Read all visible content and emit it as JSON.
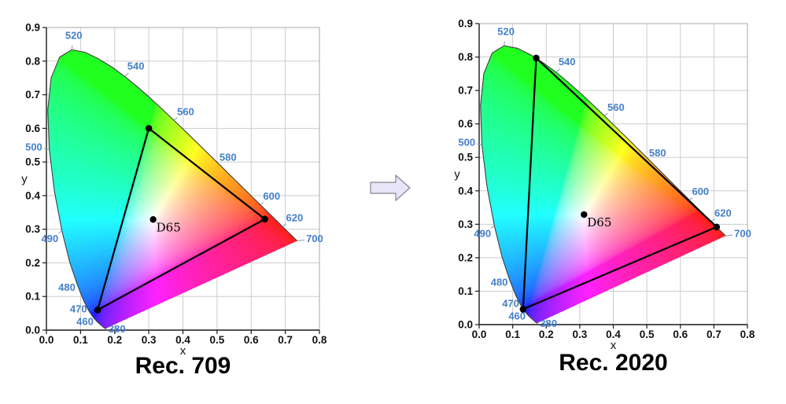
{
  "figure": {
    "description": "CIE 1931 xy chromaticity diagrams comparing the Rec. 709 and Rec. 2020 color gamut triangles",
    "background": "#ffffff"
  },
  "arrow": {
    "shape": "rightwards-block-arrow",
    "fill": "#e9e5f8",
    "stroke": "#85858d"
  },
  "style": {
    "wavelength_label_color": "#4580c8",
    "leader_line_color": "#7f99b8",
    "grid_color": "#cdcdcd",
    "frame_color": "#a8a8a8",
    "axis_color": "#1a1a1a",
    "triangle_color": "#000000",
    "locus_outline_color": "#3f3f3f",
    "title_color": "#000000"
  },
  "spectral_locus_xy": [
    [
      380,
      0.1741,
      0.005
    ],
    [
      385,
      0.174,
      0.005
    ],
    [
      390,
      0.1738,
      0.0049
    ],
    [
      395,
      0.1736,
      0.0049
    ],
    [
      400,
      0.1733,
      0.0048
    ],
    [
      405,
      0.173,
      0.0048
    ],
    [
      410,
      0.1726,
      0.0048
    ],
    [
      415,
      0.1721,
      0.0048
    ],
    [
      420,
      0.1714,
      0.0051
    ],
    [
      425,
      0.1703,
      0.0058
    ],
    [
      430,
      0.1689,
      0.0069
    ],
    [
      435,
      0.1669,
      0.0086
    ],
    [
      440,
      0.1644,
      0.0109
    ],
    [
      445,
      0.1611,
      0.0138
    ],
    [
      450,
      0.1566,
      0.0177
    ],
    [
      455,
      0.151,
      0.0227
    ],
    [
      460,
      0.144,
      0.0297
    ],
    [
      465,
      0.1355,
      0.0399
    ],
    [
      470,
      0.1241,
      0.0578
    ],
    [
      475,
      0.1096,
      0.0868
    ],
    [
      480,
      0.0913,
      0.1327
    ],
    [
      485,
      0.0687,
      0.2007
    ],
    [
      490,
      0.0454,
      0.295
    ],
    [
      495,
      0.0235,
      0.4127
    ],
    [
      500,
      0.0082,
      0.5384
    ],
    [
      505,
      0.0039,
      0.6548
    ],
    [
      510,
      0.0139,
      0.7502
    ],
    [
      515,
      0.0389,
      0.812
    ],
    [
      520,
      0.0743,
      0.8338
    ],
    [
      525,
      0.1142,
      0.8262
    ],
    [
      530,
      0.1547,
      0.8059
    ],
    [
      535,
      0.1929,
      0.7816
    ],
    [
      540,
      0.2296,
      0.7543
    ],
    [
      545,
      0.2658,
      0.7243
    ],
    [
      550,
      0.3016,
      0.6923
    ],
    [
      555,
      0.3373,
      0.6589
    ],
    [
      560,
      0.3731,
      0.6245
    ],
    [
      565,
      0.4087,
      0.5896
    ],
    [
      570,
      0.4441,
      0.5547
    ],
    [
      575,
      0.4788,
      0.5202
    ],
    [
      580,
      0.5125,
      0.4866
    ],
    [
      585,
      0.5448,
      0.4544
    ],
    [
      590,
      0.5752,
      0.4242
    ],
    [
      595,
      0.6029,
      0.3965
    ],
    [
      600,
      0.627,
      0.3725
    ],
    [
      605,
      0.6482,
      0.3514
    ],
    [
      610,
      0.6658,
      0.334
    ],
    [
      615,
      0.6801,
      0.3197
    ],
    [
      620,
      0.6915,
      0.3083
    ],
    [
      625,
      0.7006,
      0.2993
    ],
    [
      630,
      0.7079,
      0.292
    ],
    [
      635,
      0.714,
      0.2859
    ],
    [
      640,
      0.719,
      0.2809
    ],
    [
      645,
      0.723,
      0.277
    ],
    [
      650,
      0.726,
      0.274
    ],
    [
      655,
      0.7283,
      0.2717
    ],
    [
      660,
      0.73,
      0.27
    ],
    [
      665,
      0.7311,
      0.2689
    ],
    [
      670,
      0.732,
      0.268
    ],
    [
      675,
      0.7327,
      0.2673
    ],
    [
      680,
      0.7334,
      0.2666
    ],
    [
      685,
      0.734,
      0.266
    ],
    [
      690,
      0.7344,
      0.2656
    ],
    [
      695,
      0.7346,
      0.2654
    ],
    [
      700,
      0.7347,
      0.2653
    ]
  ],
  "wavelength_markers": [
    {
      "wl": "520",
      "locus": [
        0.0743,
        0.8338
      ],
      "label": [
        0.08,
        0.877
      ]
    },
    {
      "wl": "540",
      "locus": [
        0.2296,
        0.7543
      ],
      "label": [
        0.262,
        0.786
      ]
    },
    {
      "wl": "560",
      "locus": [
        0.3731,
        0.6245
      ],
      "label": [
        0.408,
        0.65
      ]
    },
    {
      "wl": "580",
      "locus": [
        0.5125,
        0.4866
      ],
      "label": [
        0.532,
        0.514
      ]
    },
    {
      "wl": "600",
      "locus": [
        0.627,
        0.3725
      ],
      "label": [
        0.66,
        0.398
      ]
    },
    {
      "wl": "620",
      "locus": [
        0.6915,
        0.3083
      ],
      "label": [
        0.727,
        0.334
      ]
    },
    {
      "wl": "700",
      "locus": [
        0.7347,
        0.2653
      ],
      "label": [
        0.786,
        0.272
      ]
    },
    {
      "wl": "500",
      "locus": [
        0.0082,
        0.5384
      ],
      "label": [
        -0.037,
        0.545
      ]
    },
    {
      "wl": "490",
      "locus": [
        0.0454,
        0.295
      ],
      "label": [
        0.01,
        0.272
      ]
    },
    {
      "wl": "480",
      "locus": [
        0.0913,
        0.1327
      ],
      "label": [
        0.06,
        0.127
      ]
    },
    {
      "wl": "470",
      "locus": [
        0.1241,
        0.0578
      ],
      "label": [
        0.094,
        0.063
      ]
    },
    {
      "wl": "460",
      "locus": [
        0.144,
        0.0297
      ],
      "label": [
        0.113,
        0.026
      ]
    },
    {
      "wl": "380",
      "locus": [
        0.1741,
        0.005
      ],
      "label": [
        0.207,
        0.004
      ]
    }
  ],
  "chart_data": [
    {
      "type": "area",
      "subtype": "cie-1931-xy-chromaticity-diagram",
      "title": "Rec. 709",
      "xlabel": "x",
      "ylabel": "y",
      "xlim": [
        0.0,
        0.8
      ],
      "ylim": [
        0.0,
        0.9
      ],
      "grid": true,
      "xticks": [
        "0.0",
        "0.1",
        "0.2",
        "0.3",
        "0.4",
        "0.5",
        "0.6",
        "0.7",
        "0.8"
      ],
      "yticks": [
        "0.0",
        "0.1",
        "0.2",
        "0.3",
        "0.4",
        "0.5",
        "0.6",
        "0.7",
        "0.8",
        "0.9"
      ],
      "white_point": {
        "label": "D65",
        "x": 0.3127,
        "y": 0.329
      },
      "gamut": {
        "name": "Rec. 709",
        "red": [
          0.64,
          0.33
        ],
        "green": [
          0.3,
          0.6
        ],
        "blue": [
          0.15,
          0.06
        ]
      }
    },
    {
      "type": "area",
      "subtype": "cie-1931-xy-chromaticity-diagram",
      "title": "Rec. 2020",
      "xlabel": "x",
      "ylabel": "y",
      "xlim": [
        0.0,
        0.8
      ],
      "ylim": [
        0.0,
        0.9
      ],
      "grid": true,
      "xticks": [
        "0.0",
        "0.1",
        "0.2",
        "0.3",
        "0.4",
        "0.5",
        "0.6",
        "0.7",
        "0.8"
      ],
      "yticks": [
        "0.0",
        "0.1",
        "0.2",
        "0.3",
        "0.4",
        "0.5",
        "0.6",
        "0.7",
        "0.8",
        "0.9"
      ],
      "white_point": {
        "label": "D65",
        "x": 0.3127,
        "y": 0.329
      },
      "gamut": {
        "name": "Rec. 2020",
        "red": [
          0.708,
          0.292
        ],
        "green": [
          0.17,
          0.797
        ],
        "blue": [
          0.131,
          0.046
        ]
      }
    }
  ]
}
